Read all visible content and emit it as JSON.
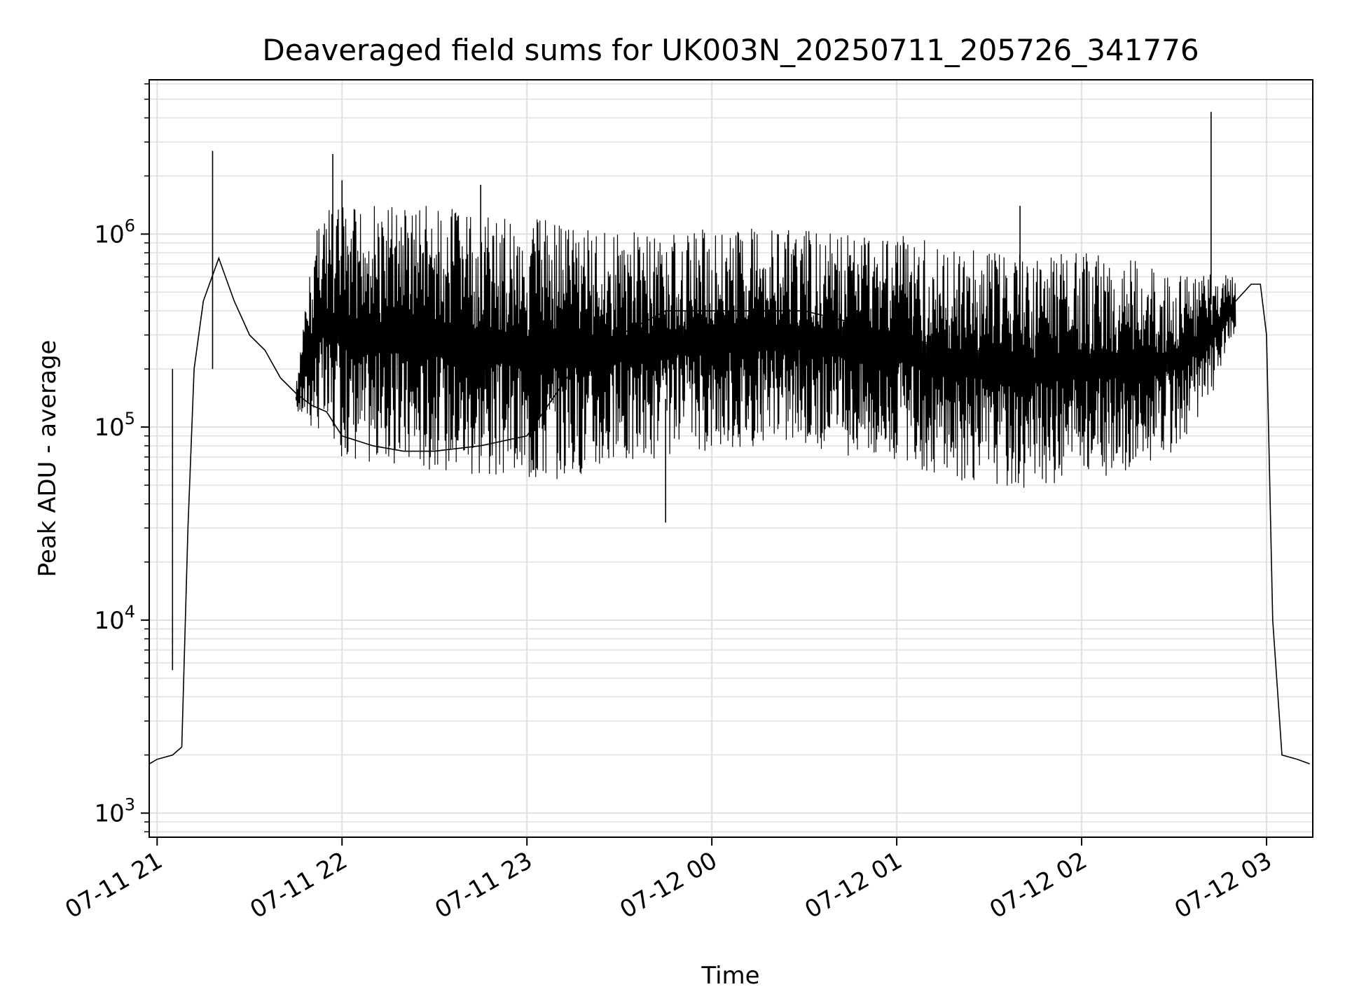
{
  "chart_data": {
    "type": "line",
    "title": "Deaveraged field sums for UK003N_20250711_205726_341776",
    "xlabel": "Time",
    "ylabel": "Peak ADU - average",
    "yscale": "log",
    "grid": true,
    "ylim": [
      750,
      6300000
    ],
    "xlim": [
      "2025-07-11T20:57:26",
      "2025-07-12T03:15:00"
    ],
    "x_ticks": [
      "07-11 21",
      "07-11 22",
      "07-11 23",
      "07-12 00",
      "07-12 01",
      "07-12 02",
      "07-12 03"
    ],
    "y_ticks": [
      {
        "base": "10",
        "exp": "3"
      },
      {
        "base": "10",
        "exp": "4"
      },
      {
        "base": "10",
        "exp": "5"
      },
      {
        "base": "10",
        "exp": "6"
      }
    ],
    "line_color": "#000000",
    "grid_color": "#e0e0e0",
    "series": [
      {
        "x": [
          "2025-07-11T20:57:30",
          "2025-07-11T21:00:00",
          "2025-07-11T21:05:00",
          "2025-07-11T21:08:00",
          "2025-07-11T21:10:00",
          "2025-07-11T21:12:00",
          "2025-07-11T21:15:00",
          "2025-07-11T21:20:00",
          "2025-07-11T21:25:00",
          "2025-07-11T21:30:00",
          "2025-07-11T21:35:00",
          "2025-07-11T21:40:00",
          "2025-07-11T21:45:00",
          "2025-07-11T21:50:00",
          "2025-07-11T21:55:00",
          "2025-07-11T22:00:00",
          "2025-07-11T22:10:00",
          "2025-07-11T22:20:00",
          "2025-07-11T22:30:00",
          "2025-07-11T22:45:00",
          "2025-07-11T23:00:00",
          "2025-07-11T23:15:00",
          "2025-07-11T23:30:00",
          "2025-07-11T23:45:00",
          "2025-07-12T00:00:00",
          "2025-07-12T00:15:00",
          "2025-07-12T00:30:00",
          "2025-07-12T00:45:00",
          "2025-07-12T01:00:00",
          "2025-07-12T01:15:00",
          "2025-07-12T01:30:00",
          "2025-07-12T01:45:00",
          "2025-07-12T02:00:00",
          "2025-07-12T02:15:00",
          "2025-07-12T02:30:00",
          "2025-07-12T02:40:00",
          "2025-07-12T02:50:00",
          "2025-07-12T02:55:00",
          "2025-07-12T02:58:00",
          "2025-07-12T03:00:00",
          "2025-07-12T03:02:00",
          "2025-07-12T03:05:00",
          "2025-07-12T03:10:00",
          "2025-07-12T03:14:00"
        ],
        "y": [
          1800,
          1900,
          2000,
          2200,
          30000,
          200000,
          450000,
          750000,
          450000,
          300000,
          250000,
          180000,
          150000,
          130000,
          120000,
          90000,
          80000,
          75000,
          75000,
          80000,
          90000,
          200000,
          300000,
          400000,
          400000,
          400000,
          400000,
          350000,
          300000,
          260000,
          220000,
          200000,
          180000,
          180000,
          200000,
          280000,
          450000,
          550000,
          550000,
          300000,
          10000,
          2000,
          1900,
          1800
        ]
      }
    ],
    "envelope": {
      "x": [
        "2025-07-11T21:45:00",
        "2025-07-11T21:52:00",
        "2025-07-11T22:00:00",
        "2025-07-11T22:15:00",
        "2025-07-11T22:30:00",
        "2025-07-11T22:45:00",
        "2025-07-11T23:00:00",
        "2025-07-11T23:15:00",
        "2025-07-11T23:30:00",
        "2025-07-11T23:45:00",
        "2025-07-12T00:00:00",
        "2025-07-12T00:15:00",
        "2025-07-12T00:30:00",
        "2025-07-12T00:45:00",
        "2025-07-12T01:00:00",
        "2025-07-12T01:15:00",
        "2025-07-12T01:30:00",
        "2025-07-12T01:45:00",
        "2025-07-12T02:00:00",
        "2025-07-12T02:15:00",
        "2025-07-12T02:30:00",
        "2025-07-12T02:40:00",
        "2025-07-12T02:50:00"
      ],
      "low": [
        120000,
        90000,
        70000,
        60000,
        60000,
        55000,
        50000,
        55000,
        60000,
        70000,
        75000,
        80000,
        80000,
        70000,
        65000,
        55000,
        50000,
        48000,
        55000,
        55000,
        75000,
        120000,
        300000
      ],
      "high": [
        160000,
        1400000,
        1400000,
        1400000,
        1400000,
        1300000,
        1250000,
        1150000,
        1050000,
        1000000,
        1100000,
        1100000,
        1050000,
        1000000,
        1000000,
        900000,
        850000,
        800000,
        800000,
        750000,
        650000,
        650000,
        600000
      ]
    },
    "spikes": [
      {
        "x": "2025-07-11T21:18:00",
        "y": 2700000
      },
      {
        "x": "2025-07-11T21:57:00",
        "y": 2600000
      },
      {
        "x": "2025-07-11T22:00:00",
        "y": 1900000
      },
      {
        "x": "2025-07-11T22:45:00",
        "y": 1800000
      },
      {
        "x": "2025-07-11T23:45:00",
        "y": 32000
      },
      {
        "x": "2025-07-12T01:40:00",
        "y": 1400000
      },
      {
        "x": "2025-07-12T02:42:00",
        "y": 4300000
      },
      {
        "x": "2025-07-11T21:05:00",
        "y": 5500
      }
    ]
  }
}
